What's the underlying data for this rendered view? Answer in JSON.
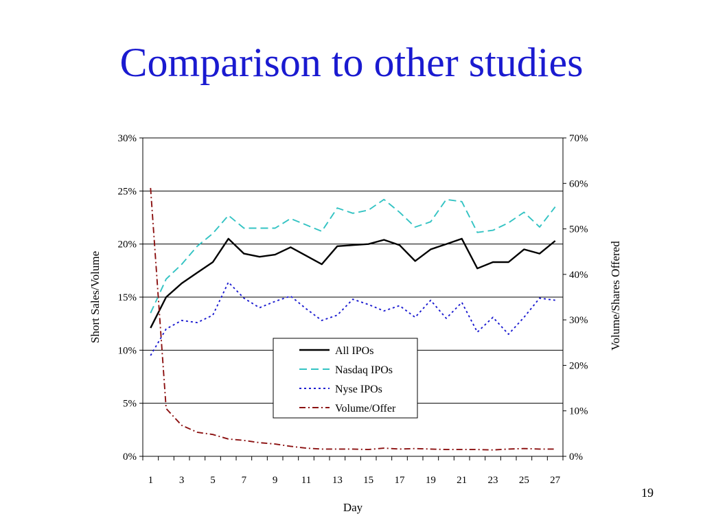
{
  "slide": {
    "title": "Comparison to other studies",
    "page_number": "19"
  },
  "chart_data": {
    "type": "line",
    "xlabel": "Day",
    "ylabel_left": "Short Sales/Volume",
    "ylabel_right": "Volume/Shares Offered",
    "x": [
      1,
      2,
      3,
      4,
      5,
      6,
      7,
      8,
      9,
      10,
      11,
      12,
      13,
      14,
      15,
      16,
      17,
      18,
      19,
      20,
      21,
      22,
      23,
      24,
      25,
      26,
      27
    ],
    "x_tick_labels": [
      "1",
      "3",
      "5",
      "7",
      "9",
      "11",
      "13",
      "15",
      "17",
      "19",
      "21",
      "23",
      "25",
      "27"
    ],
    "y_left": {
      "range": [
        0,
        0.3
      ],
      "ticks": [
        "0%",
        "5%",
        "10%",
        "15%",
        "20%",
        "25%",
        "30%"
      ]
    },
    "y_right": {
      "range": [
        0,
        0.7
      ],
      "ticks": [
        "0%",
        "10%",
        "20%",
        "30%",
        "40%",
        "50%",
        "60%",
        "70%"
      ]
    },
    "grid": "horizontal-major",
    "legend_position": "center-bottom",
    "series": [
      {
        "name": "All IPOs",
        "axis": "left",
        "color": "#000000",
        "style": "solid",
        "values": [
          0.121,
          0.15,
          0.163,
          0.173,
          0.183,
          0.205,
          0.191,
          0.188,
          0.19,
          0.197,
          0.189,
          0.181,
          0.198,
          0.199,
          0.2,
          0.204,
          0.199,
          0.184,
          0.195,
          0.2,
          0.205,
          0.177,
          0.183,
          0.183,
          0.195,
          0.191,
          0.203
        ]
      },
      {
        "name": "Nasdaq IPOs",
        "axis": "left",
        "color": "#33c3c3",
        "style": "dashed",
        "values": [
          0.135,
          0.167,
          0.181,
          0.198,
          0.21,
          0.227,
          0.215,
          0.215,
          0.215,
          0.224,
          0.218,
          0.212,
          0.234,
          0.229,
          0.232,
          0.242,
          0.23,
          0.216,
          0.221,
          0.242,
          0.24,
          0.211,
          0.213,
          0.22,
          0.23,
          0.216,
          0.235
        ]
      },
      {
        "name": "Nyse IPOs",
        "axis": "left",
        "color": "#1a1ad0",
        "style": "dotted",
        "values": [
          0.095,
          0.12,
          0.128,
          0.126,
          0.133,
          0.164,
          0.149,
          0.14,
          0.146,
          0.151,
          0.139,
          0.128,
          0.133,
          0.148,
          0.143,
          0.137,
          0.142,
          0.131,
          0.147,
          0.13,
          0.145,
          0.117,
          0.131,
          0.115,
          0.131,
          0.149,
          0.147
        ]
      },
      {
        "name": "Volume/Offer",
        "axis": "right",
        "color": "#8b1010",
        "style": "dashdot",
        "values": [
          0.59,
          0.105,
          0.068,
          0.053,
          0.048,
          0.038,
          0.035,
          0.03,
          0.027,
          0.022,
          0.018,
          0.016,
          0.016,
          0.016,
          0.015,
          0.018,
          0.016,
          0.017,
          0.016,
          0.015,
          0.015,
          0.015,
          0.014,
          0.016,
          0.017,
          0.016,
          0.016
        ]
      }
    ]
  }
}
